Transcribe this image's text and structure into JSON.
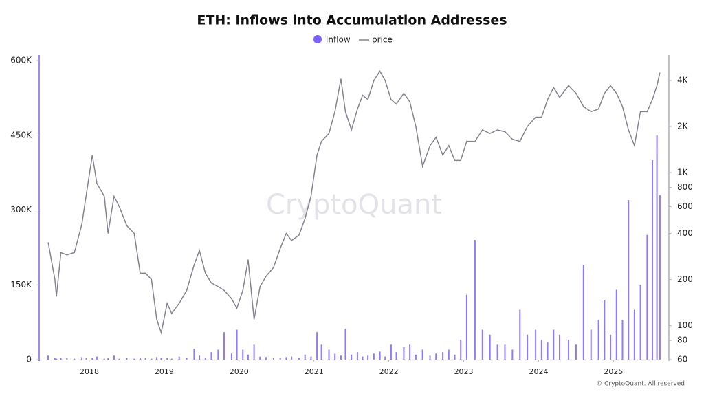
{
  "chart_data": {
    "type": "bar",
    "title": "ETH: Inflows into Accumulation Addresses",
    "watermark": "CryptoQuant",
    "footer": "© CryptoQuant. All reserved",
    "x": [
      2017.45,
      2017.54,
      2017.56,
      2017.62,
      2017.7,
      2017.8,
      2017.9,
      2017.96,
      2018.04,
      2018.1,
      2018.2,
      2018.25,
      2018.33,
      2018.4,
      2018.5,
      2018.6,
      2018.68,
      2018.75,
      2018.83,
      2018.9,
      2018.96,
      2019.04,
      2019.1,
      2019.2,
      2019.3,
      2019.4,
      2019.47,
      2019.55,
      2019.63,
      2019.72,
      2019.8,
      2019.9,
      2019.97,
      2020.05,
      2020.12,
      2020.2,
      2020.28,
      2020.36,
      2020.46,
      2020.55,
      2020.63,
      2020.7,
      2020.8,
      2020.88,
      2020.96,
      2021.04,
      2021.1,
      2021.2,
      2021.28,
      2021.36,
      2021.42,
      2021.5,
      2021.58,
      2021.65,
      2021.72,
      2021.8,
      2021.88,
      2021.95,
      2022.03,
      2022.1,
      2022.2,
      2022.28,
      2022.36,
      2022.45,
      2022.55,
      2022.63,
      2022.72,
      2022.8,
      2022.88,
      2022.96,
      2023.04,
      2023.15,
      2023.25,
      2023.35,
      2023.45,
      2023.55,
      2023.65,
      2023.75,
      2023.85,
      2023.96,
      2024.04,
      2024.12,
      2024.2,
      2024.28,
      2024.4,
      2024.5,
      2024.6,
      2024.7,
      2024.8,
      2024.88,
      2024.96,
      2025.04,
      2025.12,
      2025.2,
      2025.28,
      2025.36,
      2025.45,
      2025.52,
      2025.58,
      2025.62
    ],
    "series": [
      {
        "name": "inflow",
        "type": "bar",
        "color": "#7b61ff",
        "values": [
          8000,
          3000,
          2000,
          4000,
          3000,
          2000,
          5000,
          3000,
          4000,
          6000,
          2000,
          3000,
          8000,
          2000,
          3000,
          2000,
          4000,
          3000,
          2000,
          5000,
          4000,
          3000,
          2000,
          6000,
          4000,
          22000,
          8000,
          4000,
          15000,
          20000,
          55000,
          12000,
          60000,
          20000,
          10000,
          30000,
          6000,
          5000,
          3000,
          4000,
          5000,
          6000,
          4000,
          10000,
          6000,
          55000,
          30000,
          20000,
          12000,
          8000,
          62000,
          10000,
          15000,
          6000,
          8000,
          12000,
          16000,
          6000,
          30000,
          15000,
          25000,
          30000,
          10000,
          20000,
          8000,
          12000,
          15000,
          20000,
          10000,
          40000,
          130000,
          240000,
          60000,
          50000,
          30000,
          30000,
          20000,
          100000,
          50000,
          60000,
          40000,
          35000,
          60000,
          50000,
          40000,
          30000,
          190000,
          60000,
          80000,
          120000,
          50000,
          140000,
          80000,
          320000,
          100000,
          150000,
          250000,
          400000,
          450000,
          330000
        ]
      },
      {
        "name": "price",
        "type": "line",
        "axis": "y2",
        "color": "#85838f",
        "values": [
          350,
          200,
          155,
          300,
          290,
          300,
          460,
          720,
          1300,
          850,
          700,
          400,
          700,
          600,
          450,
          400,
          220,
          220,
          200,
          110,
          90,
          140,
          120,
          140,
          170,
          250,
          310,
          220,
          190,
          180,
          170,
          150,
          130,
          170,
          270,
          110,
          180,
          210,
          240,
          320,
          400,
          360,
          390,
          500,
          700,
          1300,
          1600,
          1800,
          2500,
          4100,
          2500,
          1900,
          2600,
          3200,
          3000,
          4000,
          4600,
          4000,
          3000,
          2800,
          3300,
          2900,
          2000,
          1100,
          1500,
          1700,
          1300,
          1500,
          1200,
          1200,
          1600,
          1600,
          1900,
          1800,
          1900,
          1850,
          1650,
          1600,
          2000,
          2300,
          2300,
          3000,
          3600,
          3100,
          3700,
          3300,
          2700,
          2500,
          2600,
          3300,
          3700,
          3300,
          2700,
          1900,
          1500,
          2500,
          2500,
          3000,
          3700,
          4500
        ]
      }
    ],
    "xlim": [
      2017.33,
      2025.74
    ],
    "xticks": [
      2018,
      2019,
      2020,
      2021,
      2022,
      2023,
      2024,
      2025
    ],
    "ylim": [
      0,
      600000
    ],
    "yticks": [
      0,
      {
        "value": 150000,
        "label": "150K"
      },
      {
        "value": 300000,
        "label": "300K"
      },
      {
        "value": 450000,
        "label": "450K"
      },
      {
        "value": 600000,
        "label": "600K"
      }
    ],
    "y2lim": [
      60,
      5400
    ],
    "y2log": true,
    "y2ticks": [
      60,
      80,
      100,
      200,
      400,
      600,
      800,
      {
        "value": 1000,
        "label": "1K"
      },
      {
        "value": 2000,
        "label": "2K"
      },
      {
        "value": 4000,
        "label": "4K"
      }
    ],
    "legend": "top"
  }
}
